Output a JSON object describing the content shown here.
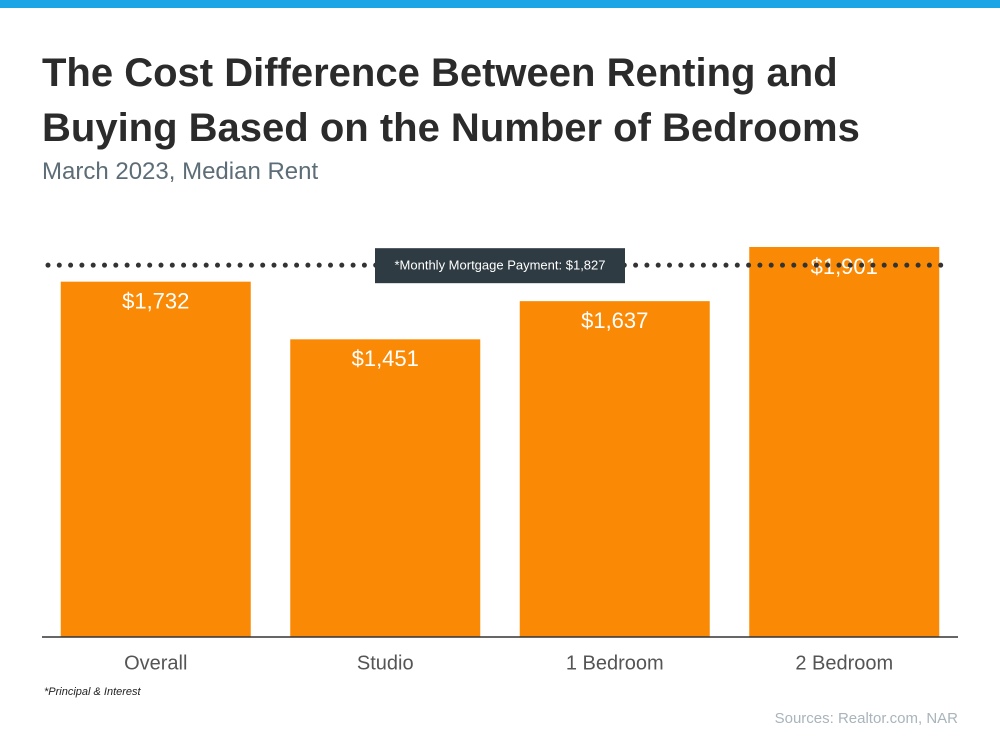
{
  "chart_data": {
    "type": "bar",
    "title": "The Cost Difference Between Renting and Buying Based on the Number of Bedrooms",
    "subtitle": "March 2023, Median Rent",
    "categories": [
      "Overall",
      "Studio",
      "1 Bedroom",
      "2 Bedroom"
    ],
    "values": [
      1732,
      1451,
      1637,
      1901
    ],
    "value_labels": [
      "$1,732",
      "$1,451",
      "$1,637",
      "$1,901"
    ],
    "color": "#fa8a05",
    "reference_line": {
      "value": 1827,
      "label": "*Monthly Mortgage Payment: $1,827"
    },
    "footnote": "*Principal & Interest",
    "source": "Sources: Realtor.com, NAR"
  }
}
